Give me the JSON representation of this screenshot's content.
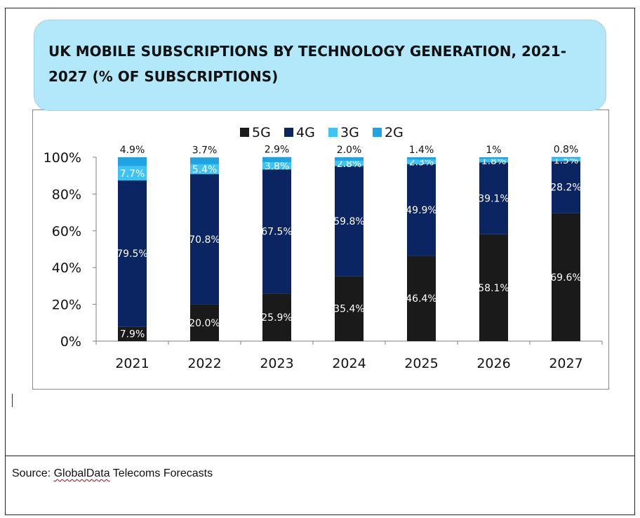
{
  "title": "UK MOBILE SUBSCRIPTIONS BY TECHNOLOGY GENERATION, 2021-2027 (% OF SUBSCRIPTIONS)",
  "source": {
    "prefix": "Source: ",
    "name": "GlobalData",
    "suffix": " Telecoms Forecasts"
  },
  "chart_data": {
    "type": "bar",
    "stacked": true,
    "categories": [
      "2021",
      "2022",
      "2023",
      "2024",
      "2025",
      "2026",
      "2027"
    ],
    "series": [
      {
        "name": "5G",
        "color": "#1a1a1a",
        "values": [
          7.9,
          20.0,
          25.9,
          35.4,
          46.4,
          58.1,
          69.6
        ],
        "labels": [
          "7.9%",
          "20.0%",
          "25.9%",
          "35.4%",
          "46.4%",
          "58.1%",
          "69.6%"
        ]
      },
      {
        "name": "4G",
        "color": "#0b2462",
        "values": [
          79.5,
          70.8,
          67.5,
          59.8,
          49.9,
          39.1,
          28.2
        ],
        "labels": [
          "79.5%",
          "70.8%",
          "67.5%",
          "59.8%",
          "49.9%",
          "39.1%",
          "28.2%"
        ]
      },
      {
        "name": "3G",
        "color": "#3ec4f4",
        "values": [
          7.7,
          5.4,
          3.8,
          2.8,
          2.3,
          1.8,
          1.5
        ],
        "labels": [
          "7.7%",
          "5.4%",
          "3.8%",
          "2.8%",
          "2.3%",
          "1.8%",
          "1.5%"
        ]
      },
      {
        "name": "2G",
        "color": "#1fa4e2",
        "values": [
          4.9,
          3.7,
          2.9,
          2.0,
          1.4,
          1.0,
          0.8
        ],
        "labels": [
          "4.9%",
          "3.7%",
          "2.9%",
          "2.0%",
          "1.4%",
          "1%",
          "0.8%"
        ]
      }
    ],
    "yticks": [
      "0%",
      "20%",
      "40%",
      "60%",
      "80%",
      "100%"
    ],
    "ylim": [
      0,
      100
    ],
    "grid": false,
    "legend_position": "top"
  }
}
